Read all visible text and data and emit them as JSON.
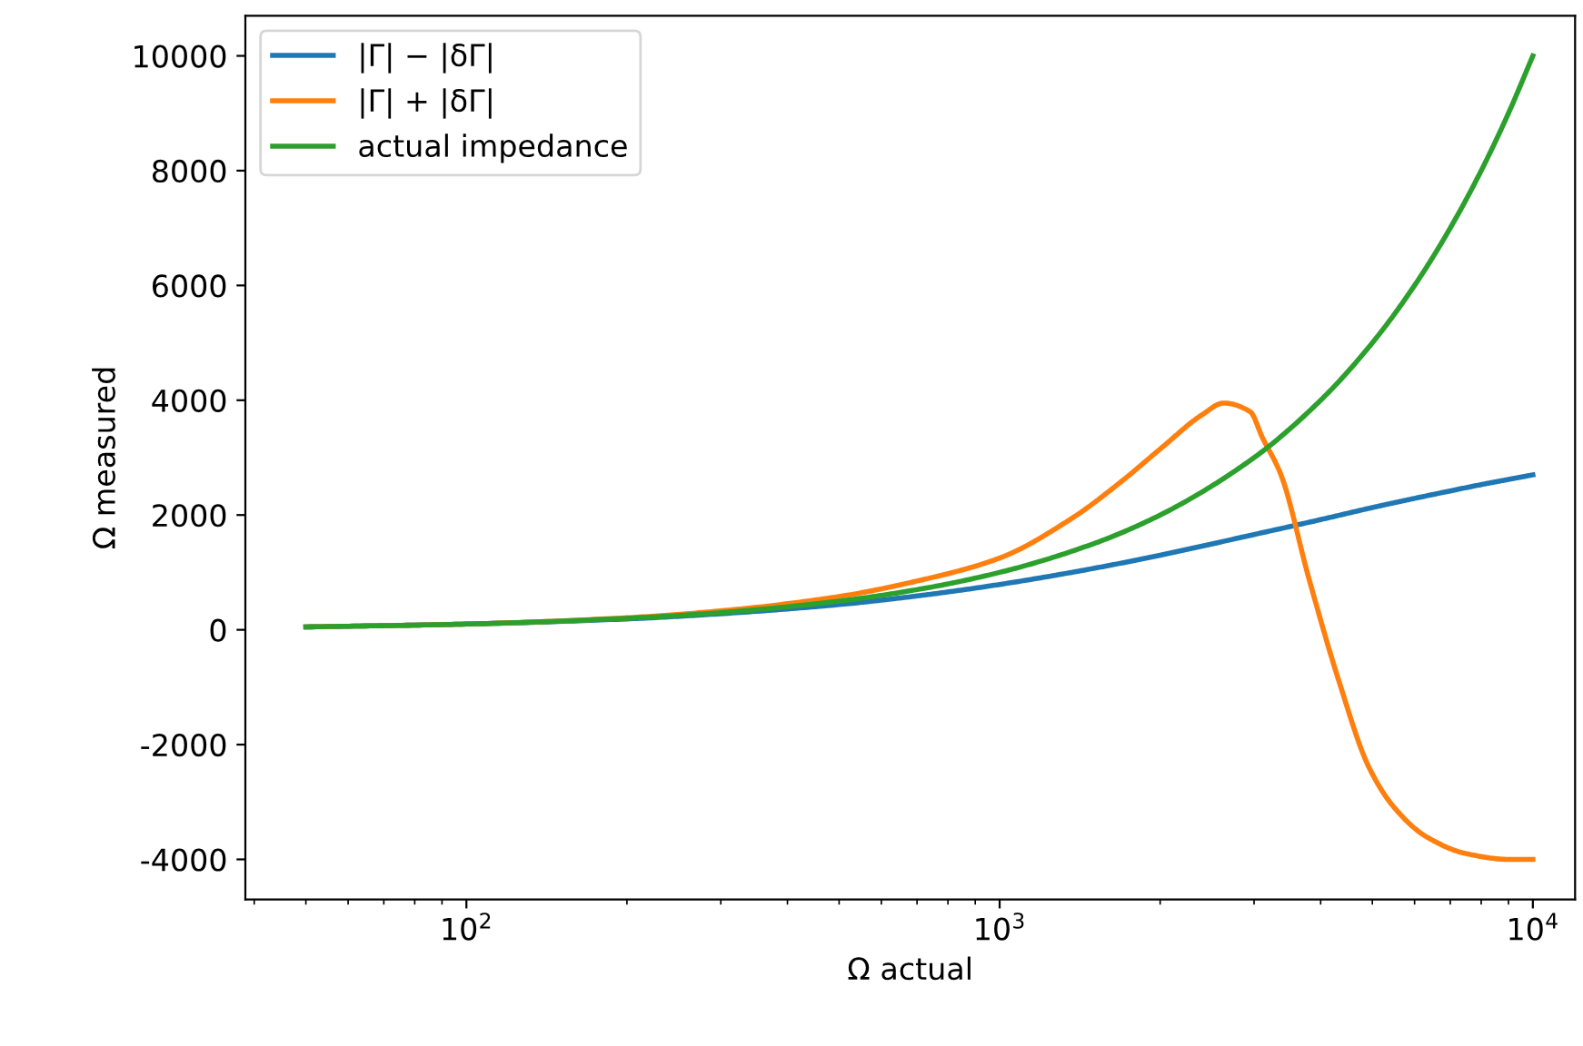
{
  "chart_data": {
    "type": "line",
    "xlabel": "Ω actual",
    "ylabel": "Ω measured",
    "log": "x",
    "xlim": [
      38.5,
      12000
    ],
    "ylim": [
      -4700,
      10700
    ],
    "xticks": [
      {
        "value": 100,
        "label": "10$^{2}$"
      },
      {
        "value": 1000,
        "label": "10$^{3}$"
      },
      {
        "value": 10000,
        "label": "10$^{4}$"
      }
    ],
    "yticks": [
      -4000,
      -2000,
      0,
      2000,
      4000,
      6000,
      8000,
      10000
    ],
    "grid": false,
    "legend": "top left",
    "marker": "none",
    "line_style": "solid",
    "series": [
      {
        "name": "|Γ| − |δΓ|",
        "color": "#1f77b4",
        "x": [
          50,
          100,
          200,
          300,
          500,
          700,
          1000,
          1500,
          2000,
          3000,
          4000,
          5000,
          6000,
          7000,
          8000,
          9000,
          10000
        ],
        "values": [
          50,
          100,
          190,
          280,
          440,
          590,
          790,
          1070,
          1300,
          1660,
          1920,
          2130,
          2290,
          2420,
          2530,
          2620,
          2700
        ]
      },
      {
        "name": "|Γ| + |δΓ|",
        "color": "#ff7f0e",
        "x": [
          50,
          100,
          200,
          300,
          500,
          700,
          1000,
          1370,
          1700,
          2000,
          2400,
          2630,
          2950,
          3110,
          3370,
          3800,
          4330,
          4930,
          5500,
          6300,
          7500,
          9000,
          10000
        ],
        "values": [
          50,
          100,
          210,
          330,
          580,
          850,
          1250,
          1950,
          2600,
          3150,
          3750,
          3950,
          3800,
          3350,
          2700,
          900,
          -900,
          -2400,
          -3100,
          -3600,
          -3900,
          -4000,
          -4000
        ]
      },
      {
        "name": "actual impedance",
        "color": "#2ca02c",
        "x": [
          50,
          100,
          200,
          300,
          500,
          700,
          1000,
          1500,
          2000,
          3000,
          4000,
          5000,
          6000,
          7000,
          8000,
          9000,
          10000
        ],
        "values": [
          50,
          100,
          200,
          300,
          500,
          700,
          1000,
          1500,
          2000,
          3000,
          4000,
          5000,
          6000,
          7000,
          8000,
          9000,
          10000
        ]
      }
    ]
  }
}
